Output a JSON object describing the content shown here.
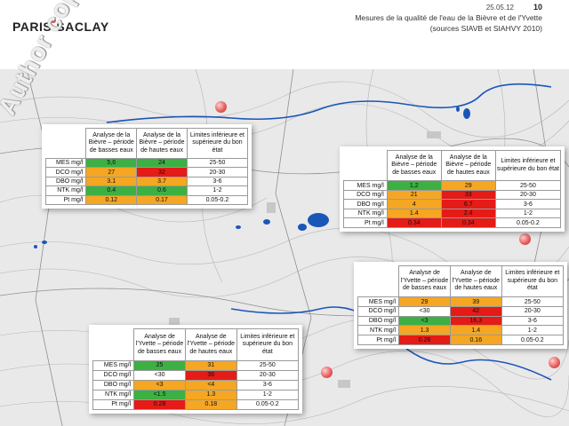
{
  "header": {
    "logo": "PARIS-SACLAY",
    "date": "25.05.12",
    "page_number": "10",
    "title_line1": "Mesures de la qualité de l'eau de la Bièvre et de l'Yvette",
    "title_line2": "(sources SIAVB et SIAHVY 2010)"
  },
  "watermark": "Author copyright ©",
  "colors": {
    "green": "#3cb043",
    "orange": "#f5a623",
    "red": "#e41b17",
    "water": "#1a56b8"
  },
  "tables": [
    {
      "id": "bievre-1",
      "headers": [
        "Analyse de la Bièvre – période de basses eaux",
        "Analyse de la Bièvre – période de hautes eaux",
        "Limites inférieure et supérieure du bon état"
      ],
      "rows": [
        {
          "label": "MES mg/l",
          "low": "5,6",
          "high": "24",
          "limit": "25-50",
          "low_c": "g",
          "high_c": "g"
        },
        {
          "label": "DCO mg/l",
          "low": "27",
          "high": "32",
          "limit": "20-30",
          "low_c": "y",
          "high_c": "r"
        },
        {
          "label": "DBO mg/l",
          "low": "3.1",
          "high": "3.7",
          "limit": "3-6",
          "low_c": "y",
          "high_c": "y"
        },
        {
          "label": "NTK mg/l",
          "low": "0.4",
          "high": "0.6",
          "limit": "1-2",
          "low_c": "g",
          "high_c": "g"
        },
        {
          "label": "Pt mg/l",
          "low": "0.12",
          "high": "0.17",
          "limit": "0.05-0.2",
          "low_c": "y",
          "high_c": "y"
        }
      ]
    },
    {
      "id": "bievre-2",
      "headers": [
        "Analyse de la Bièvre – période de basses eaux",
        "Analyse de la Bièvre – période de hautes eaux",
        "Limites inférieure et supérieure du bon état"
      ],
      "rows": [
        {
          "label": "MES mg/l",
          "low": "1,2",
          "high": "29",
          "limit": "25-50",
          "low_c": "g",
          "high_c": "y"
        },
        {
          "label": "DCO mg/l",
          "low": "21",
          "high": "33",
          "limit": "20-30",
          "low_c": "y",
          "high_c": "r"
        },
        {
          "label": "DBO mg/l",
          "low": "4",
          "high": "6.7",
          "limit": "3-6",
          "low_c": "y",
          "high_c": "r"
        },
        {
          "label": "NTK mg/l",
          "low": "1.4",
          "high": "2.4",
          "limit": "1-2",
          "low_c": "y",
          "high_c": "r"
        },
        {
          "label": "Pt mg/l",
          "low": "0.34",
          "high": "0.34",
          "limit": "0.05-0.2",
          "low_c": "r",
          "high_c": "r"
        }
      ]
    },
    {
      "id": "yvette-1",
      "headers": [
        "Analyse de l'Yvette – période de basses eaux",
        "Analyse de l'Yvette – période de hautes eaux",
        "Limites inférieure et supérieure du bon état"
      ],
      "rows": [
        {
          "label": "MES mg/l",
          "low": "29",
          "high": "39",
          "limit": "25-50",
          "low_c": "y",
          "high_c": "y"
        },
        {
          "label": "DCO mg/l",
          "low": "<30",
          "high": "42",
          "limit": "20-30",
          "low_c": "w",
          "high_c": "r"
        },
        {
          "label": "DBO mg/l",
          "low": "<3",
          "high": "16,3",
          "limit": "3-6",
          "low_c": "g",
          "high_c": "r"
        },
        {
          "label": "NTK mg/l",
          "low": "1.3",
          "high": "1.4",
          "limit": "1-2",
          "low_c": "y",
          "high_c": "y"
        },
        {
          "label": "Pt mg/l",
          "low": "0.26",
          "high": "0.16",
          "limit": "0.05-0.2",
          "low_c": "r",
          "high_c": "y"
        }
      ]
    },
    {
      "id": "yvette-2",
      "headers": [
        "Analyse de l'Yvette – période de basses eaux",
        "Analyse de l'Yvette – période de hautes eaux",
        "Limites inférieure et supérieure du bon état"
      ],
      "rows": [
        {
          "label": "MES mg/l",
          "low": "25",
          "high": "31",
          "limit": "25-50",
          "low_c": "g",
          "high_c": "y"
        },
        {
          "label": "DCO mg/l",
          "low": "<30",
          "high": "36",
          "limit": "20-30",
          "low_c": "w",
          "high_c": "r"
        },
        {
          "label": "DBO mg/l",
          "low": "<3",
          "high": "<4",
          "limit": "3-6",
          "low_c": "y",
          "high_c": "y"
        },
        {
          "label": "NTK mg/l",
          "low": "<1.5",
          "high": "1.3",
          "limit": "1-2",
          "low_c": "g",
          "high_c": "y"
        },
        {
          "label": "Pt mg/l",
          "low": "0.28",
          "high": "0.18",
          "limit": "0.05-0.2",
          "low_c": "r",
          "high_c": "y"
        }
      ]
    }
  ]
}
